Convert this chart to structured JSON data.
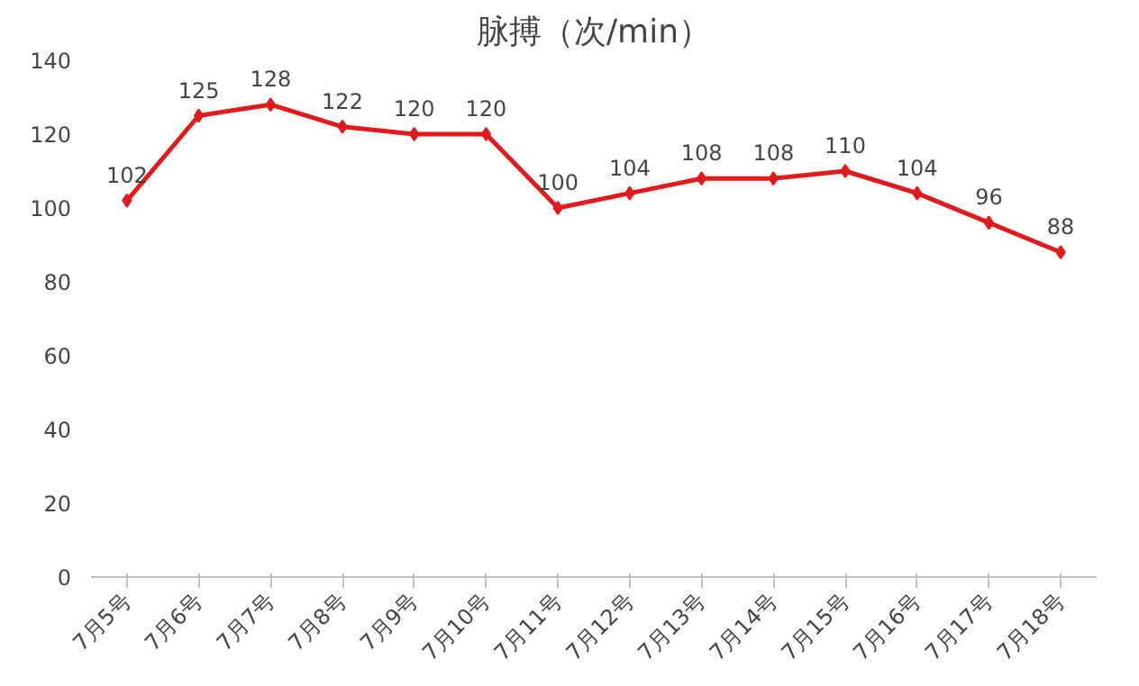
{
  "chart_data": {
    "type": "line",
    "title": "脉搏（次/min）",
    "categories": [
      "7月5号",
      "7月6号",
      "7月7号",
      "7月8号",
      "7月9号",
      "7月10号",
      "7月11号",
      "7月12号",
      "7月13号",
      "7月14号",
      "7月15号",
      "7月16号",
      "7月17号",
      "7月18号"
    ],
    "series": [
      {
        "color": "#e31a1c",
        "values": [
          102,
          125,
          128,
          122,
          120,
          120,
          100,
          104,
          108,
          108,
          110,
          104,
          96,
          88
        ]
      }
    ],
    "ylim": [
      0,
      140
    ],
    "yticks": [
      0,
      20,
      40,
      60,
      80,
      100,
      120,
      140
    ],
    "data_labels": true,
    "marker": "diamond",
    "line_style": "solid",
    "grid": false
  }
}
